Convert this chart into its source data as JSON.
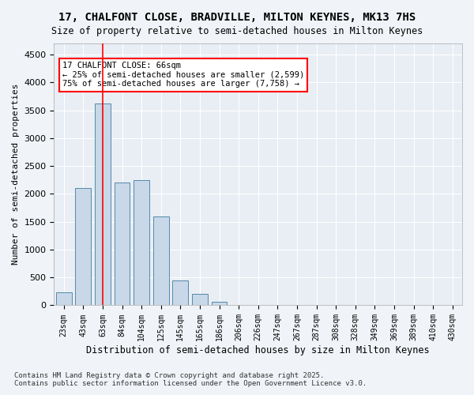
{
  "title1": "17, CHALFONT CLOSE, BRADVILLE, MILTON KEYNES, MK13 7HS",
  "title2": "Size of property relative to semi-detached houses in Milton Keynes",
  "xlabel": "Distribution of semi-detached houses by size in Milton Keynes",
  "ylabel": "Number of semi-detached properties",
  "categories": [
    "23sqm",
    "43sqm",
    "63sqm",
    "84sqm",
    "104sqm",
    "125sqm",
    "145sqm",
    "165sqm",
    "186sqm",
    "206sqm",
    "226sqm",
    "247sqm",
    "267sqm",
    "287sqm",
    "308sqm",
    "328sqm",
    "349sqm",
    "369sqm",
    "389sqm",
    "410sqm",
    "430sqm"
  ],
  "values": [
    240,
    2100,
    3620,
    2200,
    2250,
    1600,
    450,
    200,
    60,
    0,
    0,
    0,
    0,
    0,
    0,
    0,
    0,
    0,
    0,
    0,
    0
  ],
  "bar_color": "#c8d8e8",
  "bar_edge_color": "#5588aa",
  "vline_x_index": 2,
  "vline_color": "red",
  "annotation_title": "17 CHALFONT CLOSE: 66sqm",
  "annotation_line2": "← 25% of semi-detached houses are smaller (2,599)",
  "annotation_line3": "75% of semi-detached houses are larger (7,758) →",
  "annotation_box_color": "red",
  "ylim": [
    0,
    4700
  ],
  "yticks": [
    0,
    500,
    1000,
    1500,
    2000,
    2500,
    3000,
    3500,
    4000,
    4500
  ],
  "background_color": "#e8eef4",
  "footer1": "Contains HM Land Registry data © Crown copyright and database right 2025.",
  "footer2": "Contains public sector information licensed under the Open Government Licence v3.0."
}
